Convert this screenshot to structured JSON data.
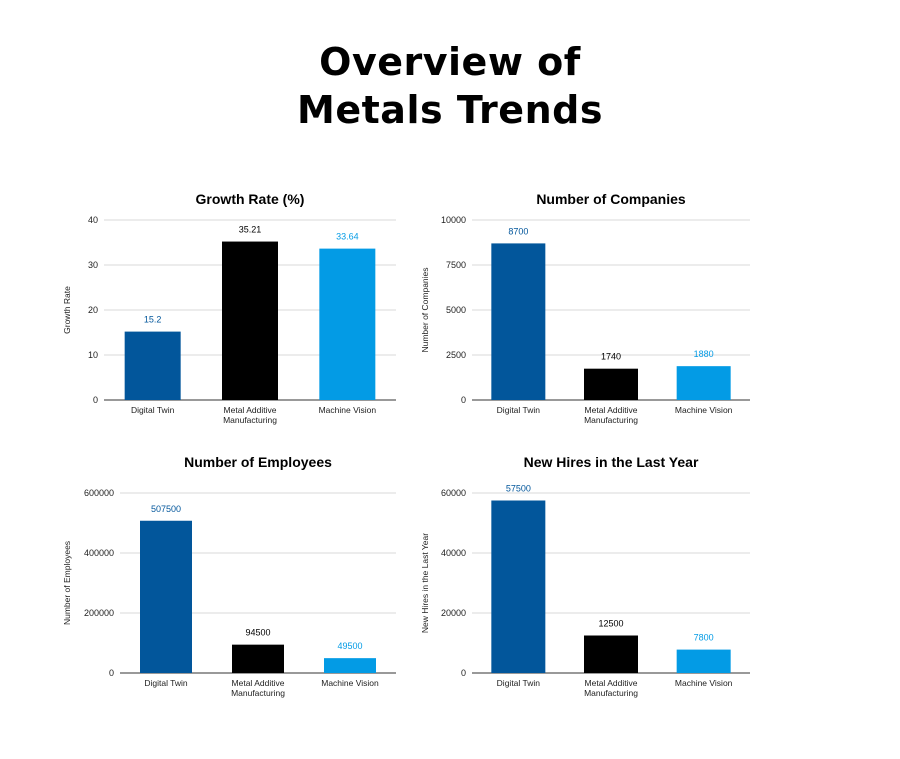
{
  "page": {
    "title_line1": "Overview of",
    "title_line2": "Metals Trends"
  },
  "colors": {
    "digital_twin": "#02569b",
    "metal_additive": "#000000",
    "machine_vision": "#039be5",
    "grid": "#d9d9d9",
    "axis": "#333333"
  },
  "chart_data": [
    {
      "type": "bar",
      "title": "Growth Rate (%)",
      "xlabel": "",
      "ylabel": "Growth Rate",
      "categories": [
        "Digital Twin",
        "Metal Additive Manufacturing",
        "Machine Vision"
      ],
      "category_lines": [
        [
          "Digital Twin"
        ],
        [
          "Metal Additive",
          "Manufacturing"
        ],
        [
          "Machine Vision"
        ]
      ],
      "values": [
        15.2,
        35.21,
        33.64
      ],
      "value_labels": [
        "15.2",
        "35.21",
        "33.64"
      ],
      "ylim": [
        0,
        40
      ],
      "yticks": [
        0,
        10,
        20,
        30,
        40
      ],
      "ytick_labels": [
        "0",
        "10",
        "20",
        "30",
        "40"
      ],
      "grid": true
    },
    {
      "type": "bar",
      "title": "Number of Companies",
      "xlabel": "",
      "ylabel": "Number of Companies",
      "categories": [
        "Digital Twin",
        "Metal Additive Manufacturing",
        "Machine Vision"
      ],
      "category_lines": [
        [
          "Digital Twin"
        ],
        [
          "Metal Additive",
          "Manufacturing"
        ],
        [
          "Machine Vision"
        ]
      ],
      "values": [
        8700,
        1740,
        1880
      ],
      "value_labels": [
        "8700",
        "1740",
        "1880"
      ],
      "ylim": [
        0,
        10000
      ],
      "yticks": [
        0,
        2500,
        5000,
        7500,
        10000
      ],
      "ytick_labels": [
        "0",
        "2500",
        "5000",
        "7500",
        "10000"
      ],
      "grid": true
    },
    {
      "type": "bar",
      "title": "Number of Employees",
      "xlabel": "",
      "ylabel": "Number of Employees",
      "categories": [
        "Digital Twin",
        "Metal Additive Manufacturing",
        "Machine Vision"
      ],
      "category_lines": [
        [
          "Digital Twin"
        ],
        [
          "Metal Additive",
          "Manufacturing"
        ],
        [
          "Machine Vision"
        ]
      ],
      "values": [
        507500,
        94500,
        49500
      ],
      "value_labels": [
        "507500",
        "94500",
        "49500"
      ],
      "ylim": [
        0,
        600000
      ],
      "yticks": [
        0,
        200000,
        400000,
        600000
      ],
      "ytick_labels": [
        "0",
        "200000",
        "400000",
        "600000"
      ],
      "grid": true
    },
    {
      "type": "bar",
      "title": "New Hires in the Last Year",
      "xlabel": "",
      "ylabel": "New Hires in the Last Year",
      "categories": [
        "Digital Twin",
        "Metal Additive Manufacturing",
        "Machine Vision"
      ],
      "category_lines": [
        [
          "Digital Twin"
        ],
        [
          "Metal Additive",
          "Manufacturing"
        ],
        [
          "Machine Vision"
        ]
      ],
      "values": [
        57500,
        12500,
        7800
      ],
      "value_labels": [
        "57500",
        "12500",
        "7800"
      ],
      "ylim": [
        0,
        60000
      ],
      "yticks": [
        0,
        20000,
        40000,
        60000
      ],
      "ytick_labels": [
        "0",
        "20000",
        "40000",
        "60000"
      ],
      "grid": true
    }
  ]
}
